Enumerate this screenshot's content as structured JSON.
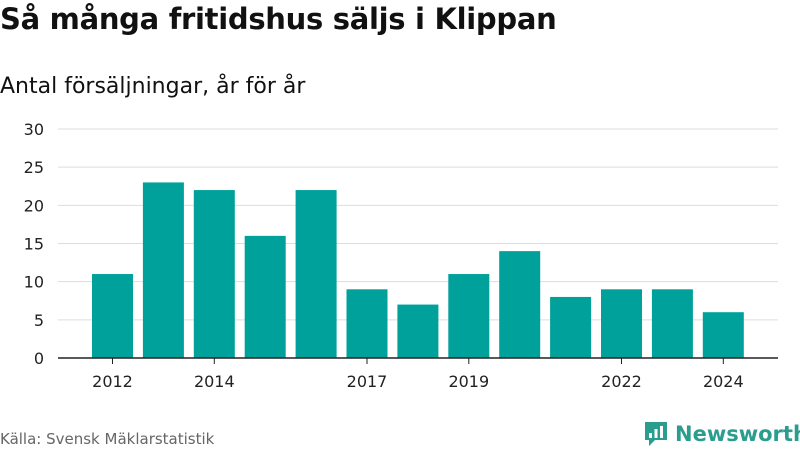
{
  "title": "Så många fritidshus säljs i Klippan",
  "subtitle": "Antal försäljningar, år för år",
  "source": "Källa: Svensk Mäklarstatistik",
  "brand": {
    "name": "Newsworthy",
    "icon": "newsworthy-logo-icon",
    "color": "#2a9d8f"
  },
  "colors": {
    "bar": "#00a19a",
    "grid": "#dddddd",
    "axis": "#222222"
  },
  "chart_data": {
    "type": "bar",
    "x": [
      2012,
      2013,
      2014,
      2015,
      2016,
      2017,
      2018,
      2019,
      2020,
      2021,
      2022,
      2023,
      2024
    ],
    "values": [
      11,
      23,
      22,
      16,
      22,
      9,
      7,
      11,
      14,
      8,
      9,
      9,
      6
    ],
    "x_tick_labels": [
      2012,
      2014,
      2017,
      2019,
      2022,
      2024
    ],
    "y_ticks": [
      0,
      5,
      10,
      15,
      20,
      25,
      30
    ],
    "ylim": [
      0,
      30
    ],
    "grid": true,
    "xlabel": "",
    "ylabel": ""
  }
}
